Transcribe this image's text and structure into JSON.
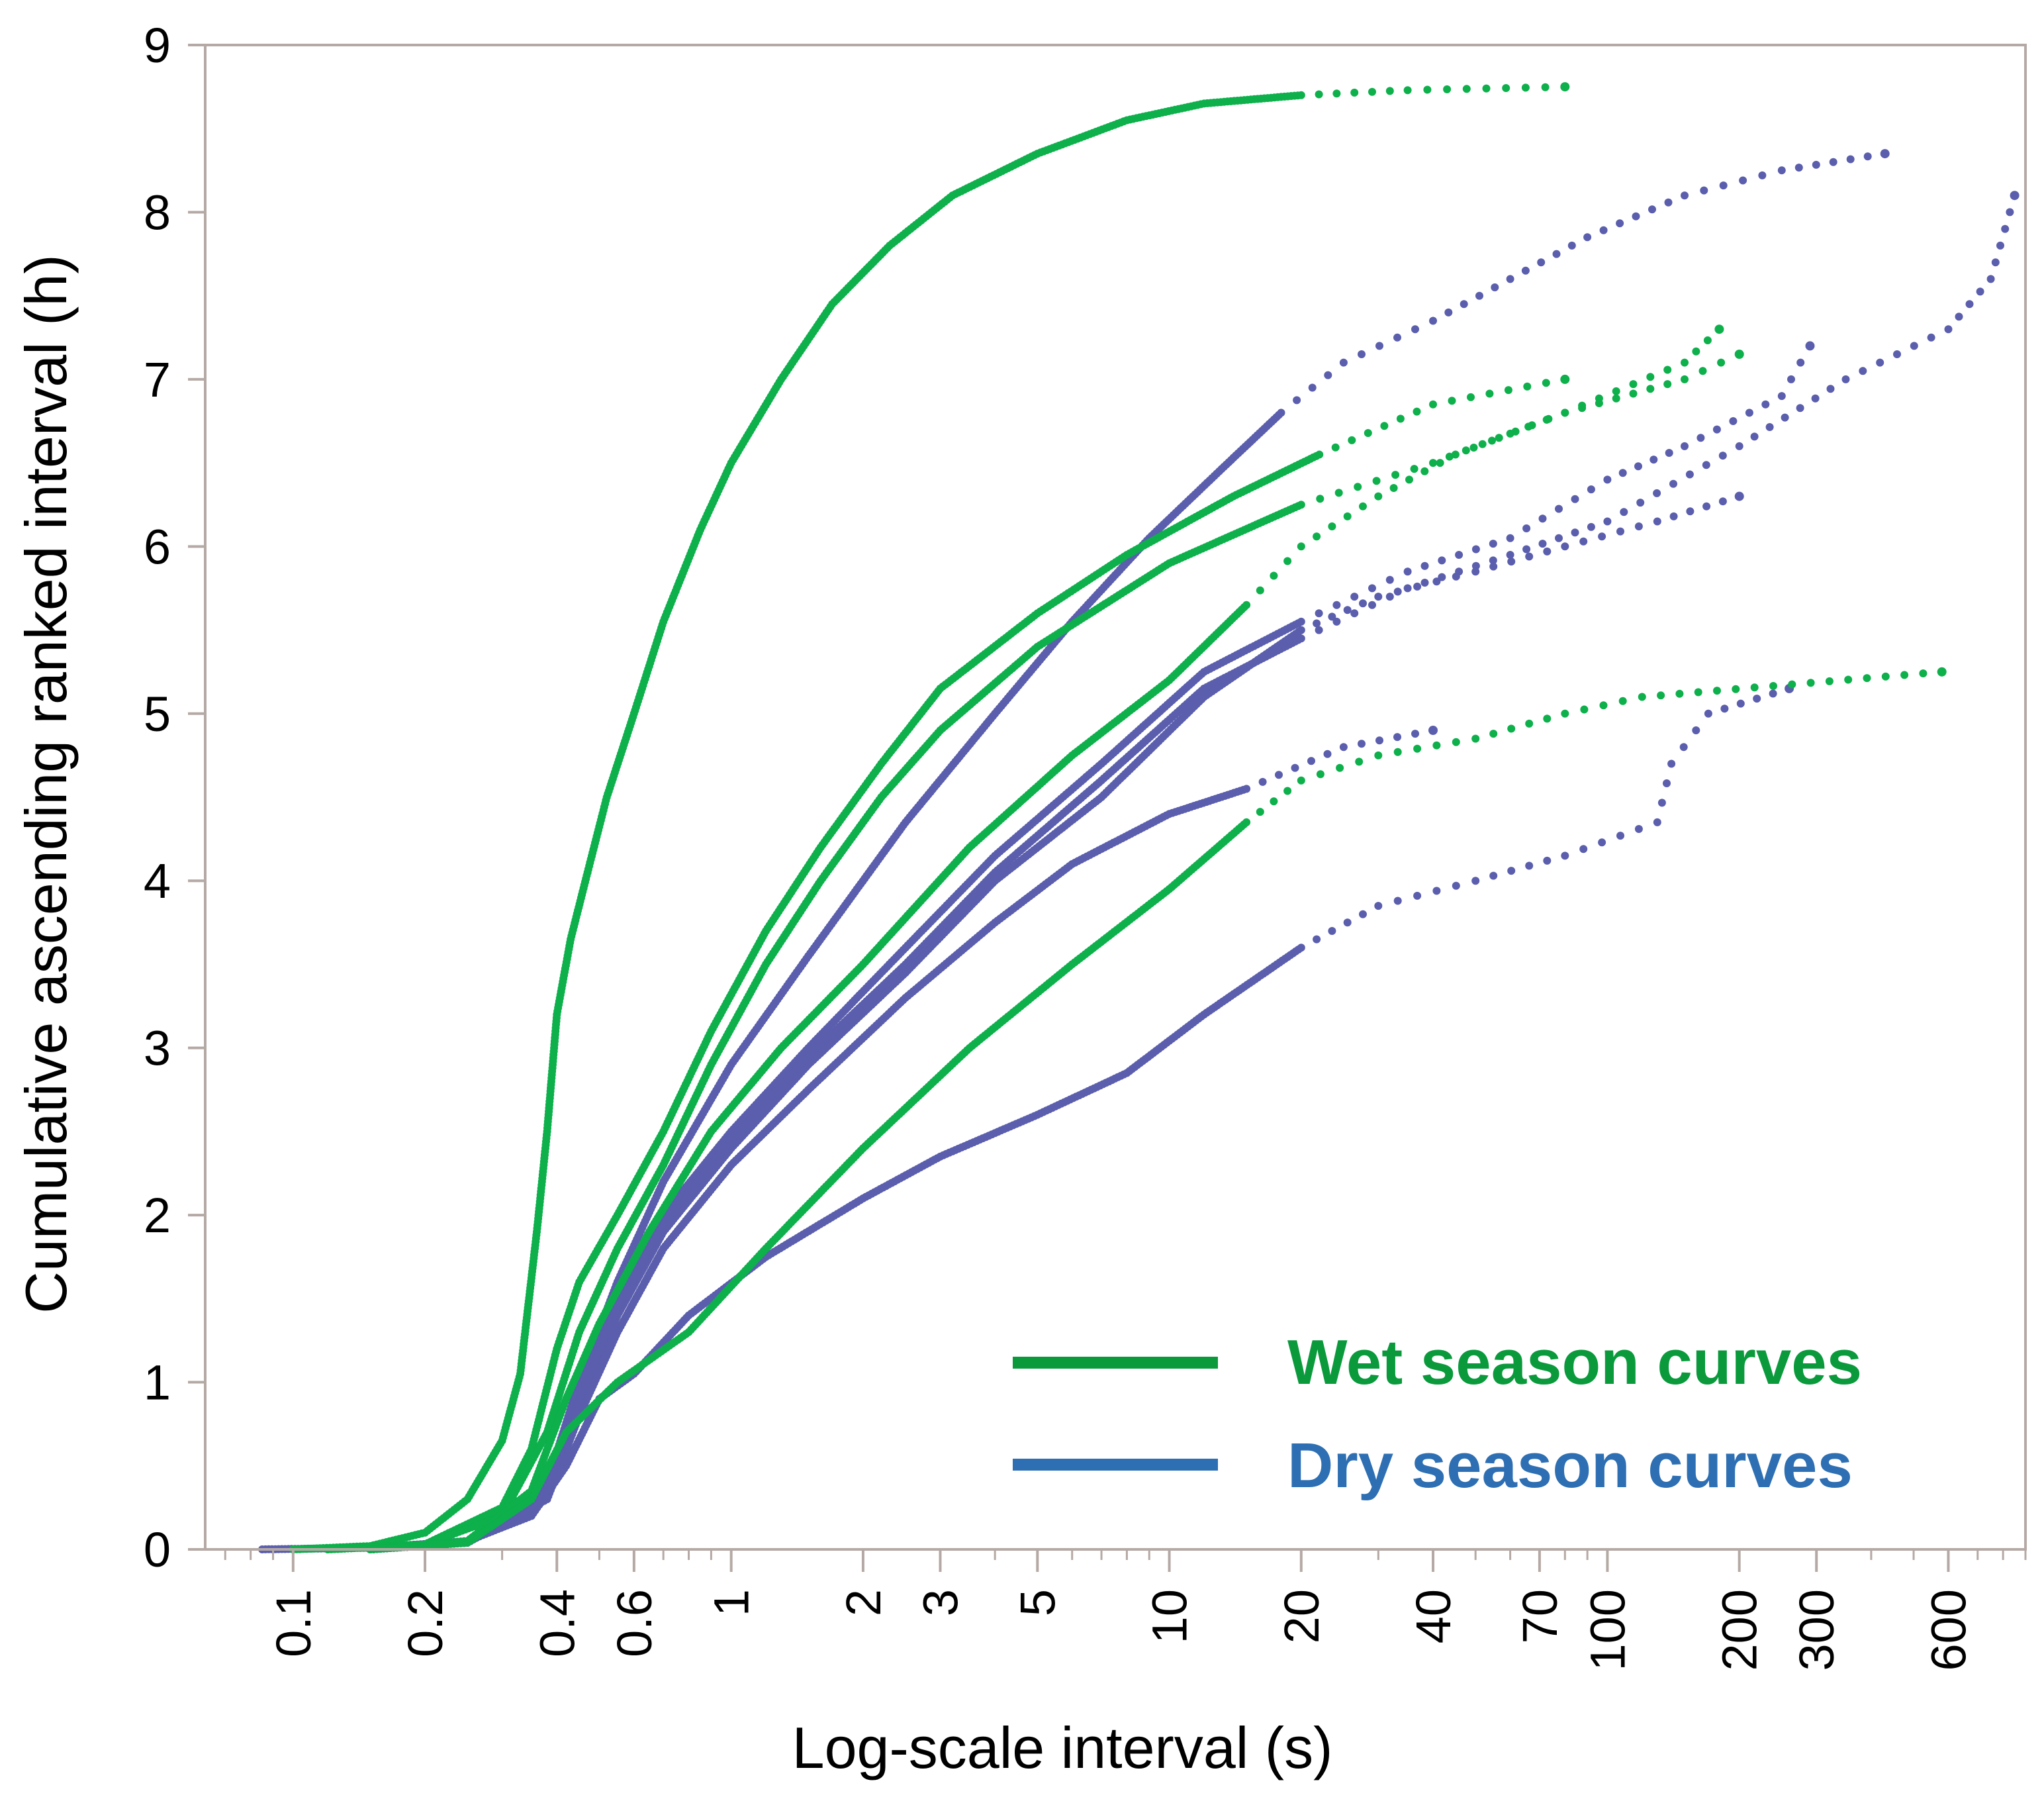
{
  "chart_data": {
    "type": "scatter",
    "title": "",
    "xlabel": "Log-scale interval (s)",
    "ylabel": "Cumulative ascending ranked interval (h)",
    "xscale": "log",
    "xlim": [
      0.063,
      900
    ],
    "ylim": [
      0,
      9
    ],
    "grid": false,
    "legend_position": "bottom-right",
    "x_ticks": [
      {
        "value": 0.1,
        "label": "0.1"
      },
      {
        "value": 0.2,
        "label": "0.2"
      },
      {
        "value": 0.4,
        "label": "0.4"
      },
      {
        "value": 0.6,
        "label": "0.6"
      },
      {
        "value": 1,
        "label": "1"
      },
      {
        "value": 2,
        "label": "2"
      },
      {
        "value": 3,
        "label": "3"
      },
      {
        "value": 5,
        "label": "5"
      },
      {
        "value": 10,
        "label": "10"
      },
      {
        "value": 20,
        "label": "20"
      },
      {
        "value": 40,
        "label": "40"
      },
      {
        "value": 70,
        "label": "70"
      },
      {
        "value": 100,
        "label": "100"
      },
      {
        "value": 200,
        "label": "200"
      },
      {
        "value": 300,
        "label": "300"
      },
      {
        "value": 600,
        "label": "600"
      }
    ],
    "y_ticks": [
      {
        "value": 0,
        "label": "0"
      },
      {
        "value": 1,
        "label": "1"
      },
      {
        "value": 2,
        "label": "2"
      },
      {
        "value": 3,
        "label": "3"
      },
      {
        "value": 4,
        "label": "4"
      },
      {
        "value": 5,
        "label": "5"
      },
      {
        "value": 6,
        "label": "6"
      },
      {
        "value": 7,
        "label": "7"
      },
      {
        "value": 8,
        "label": "8"
      },
      {
        "value": 9,
        "label": "9"
      }
    ],
    "legend": [
      {
        "label": "Wet season curves",
        "color": "#0a9a3c"
      },
      {
        "label": "Dry season curves",
        "color": "#2e6fb3"
      }
    ],
    "series": [
      {
        "name": "Wet season curve 1",
        "season": "wet",
        "color": "#0db04b",
        "points": [
          [
            0.1,
            0
          ],
          [
            0.15,
            0.02
          ],
          [
            0.2,
            0.1
          ],
          [
            0.25,
            0.3
          ],
          [
            0.3,
            0.65
          ],
          [
            0.33,
            1.05
          ],
          [
            0.36,
            1.9
          ],
          [
            0.38,
            2.5
          ],
          [
            0.4,
            3.2
          ],
          [
            0.43,
            3.65
          ],
          [
            0.47,
            4.05
          ],
          [
            0.52,
            4.5
          ],
          [
            0.6,
            5.0
          ],
          [
            0.7,
            5.55
          ],
          [
            0.85,
            6.1
          ],
          [
            1.0,
            6.5
          ],
          [
            1.3,
            7.0
          ],
          [
            1.7,
            7.45
          ],
          [
            2.3,
            7.8
          ],
          [
            3.2,
            8.1
          ],
          [
            5,
            8.35
          ],
          [
            8,
            8.55
          ],
          [
            12,
            8.65
          ],
          [
            20,
            8.7
          ],
          [
            35,
            8.73
          ],
          [
            80,
            8.75
          ]
        ]
      },
      {
        "name": "Wet season curve 2",
        "season": "wet",
        "color": "#0db04b",
        "points": [
          [
            0.12,
            0
          ],
          [
            0.2,
            0.03
          ],
          [
            0.3,
            0.25
          ],
          [
            0.35,
            0.6
          ],
          [
            0.4,
            1.2
          ],
          [
            0.45,
            1.6
          ],
          [
            0.55,
            2.0
          ],
          [
            0.7,
            2.5
          ],
          [
            0.9,
            3.1
          ],
          [
            1.2,
            3.7
          ],
          [
            1.6,
            4.2
          ],
          [
            2.2,
            4.7
          ],
          [
            3,
            5.15
          ],
          [
            5,
            5.6
          ],
          [
            8,
            5.95
          ],
          [
            14,
            6.3
          ],
          [
            22,
            6.55
          ],
          [
            40,
            6.85
          ],
          [
            80,
            7.0
          ]
        ]
      },
      {
        "name": "Wet season curve 3",
        "season": "wet",
        "color": "#0db04b",
        "points": [
          [
            0.12,
            0
          ],
          [
            0.2,
            0.03
          ],
          [
            0.3,
            0.2
          ],
          [
            0.38,
            0.7
          ],
          [
            0.45,
            1.3
          ],
          [
            0.55,
            1.8
          ],
          [
            0.7,
            2.3
          ],
          [
            0.9,
            2.9
          ],
          [
            1.2,
            3.5
          ],
          [
            1.6,
            4.0
          ],
          [
            2.2,
            4.5
          ],
          [
            3,
            4.9
          ],
          [
            5,
            5.4
          ],
          [
            10,
            5.9
          ],
          [
            20,
            6.25
          ],
          [
            40,
            6.5
          ],
          [
            80,
            6.8
          ],
          [
            150,
            7.1
          ],
          [
            180,
            7.3
          ]
        ]
      },
      {
        "name": "Wet season curve 4",
        "season": "wet",
        "color": "#0db04b",
        "points": [
          [
            0.15,
            0
          ],
          [
            0.25,
            0.05
          ],
          [
            0.35,
            0.35
          ],
          [
            0.42,
            0.9
          ],
          [
            0.5,
            1.35
          ],
          [
            0.65,
            1.9
          ],
          [
            0.9,
            2.5
          ],
          [
            1.3,
            3.0
          ],
          [
            2,
            3.5
          ],
          [
            3.5,
            4.2
          ],
          [
            6,
            4.75
          ],
          [
            10,
            5.2
          ],
          [
            15,
            5.65
          ],
          [
            20,
            6.0
          ],
          [
            30,
            6.3
          ],
          [
            45,
            6.55
          ],
          [
            80,
            6.8
          ],
          [
            150,
            7.0
          ],
          [
            200,
            7.15
          ]
        ]
      },
      {
        "name": "Wet season curve 5",
        "season": "wet",
        "color": "#0db04b",
        "points": [
          [
            0.15,
            0
          ],
          [
            0.25,
            0.04
          ],
          [
            0.35,
            0.3
          ],
          [
            0.42,
            0.7
          ],
          [
            0.55,
            1.0
          ],
          [
            0.8,
            1.3
          ],
          [
            1.2,
            1.8
          ],
          [
            2,
            2.4
          ],
          [
            3.5,
            3.0
          ],
          [
            6,
            3.5
          ],
          [
            10,
            3.95
          ],
          [
            15,
            4.35
          ],
          [
            20,
            4.6
          ],
          [
            30,
            4.75
          ],
          [
            50,
            4.85
          ],
          [
            80,
            5.0
          ],
          [
            120,
            5.1
          ],
          [
            580,
            5.25
          ]
        ]
      },
      {
        "name": "Dry season curve 1",
        "season": "dry",
        "color": "#5a5ead",
        "points": [
          [
            0.085,
            0
          ],
          [
            0.15,
            0.01
          ],
          [
            0.25,
            0.05
          ],
          [
            0.35,
            0.2
          ],
          [
            0.42,
            0.5
          ],
          [
            0.5,
            0.9
          ],
          [
            0.6,
            1.05
          ],
          [
            0.8,
            1.4
          ],
          [
            1.2,
            1.75
          ],
          [
            2,
            2.1
          ],
          [
            3,
            2.35
          ],
          [
            5,
            2.6
          ],
          [
            8,
            2.85
          ],
          [
            12,
            3.2
          ],
          [
            20,
            3.6
          ],
          [
            30,
            3.85
          ],
          [
            50,
            4.0
          ],
          [
            80,
            4.15
          ],
          [
            130,
            4.35
          ],
          [
            140,
            4.7
          ],
          [
            170,
            5.0
          ],
          [
            260,
            5.15
          ]
        ]
      },
      {
        "name": "Dry season curve 2",
        "season": "dry",
        "color": "#5a5ead",
        "points": [
          [
            0.15,
            0
          ],
          [
            0.25,
            0.04
          ],
          [
            0.38,
            0.3
          ],
          [
            0.45,
            0.8
          ],
          [
            0.55,
            1.3
          ],
          [
            0.7,
            1.8
          ],
          [
            1,
            2.3
          ],
          [
            1.5,
            2.75
          ],
          [
            2.5,
            3.3
          ],
          [
            4,
            3.75
          ],
          [
            6,
            4.1
          ],
          [
            10,
            4.4
          ],
          [
            15,
            4.55
          ],
          [
            25,
            4.8
          ],
          [
            40,
            4.9
          ]
        ]
      },
      {
        "name": "Dry season curve 3",
        "season": "dry",
        "color": "#5a5ead",
        "points": [
          [
            0.15,
            0
          ],
          [
            0.25,
            0.04
          ],
          [
            0.38,
            0.35
          ],
          [
            0.45,
            0.9
          ],
          [
            0.55,
            1.4
          ],
          [
            0.7,
            1.9
          ],
          [
            1,
            2.4
          ],
          [
            1.5,
            2.9
          ],
          [
            2.5,
            3.45
          ],
          [
            4,
            4.0
          ],
          [
            7,
            4.5
          ],
          [
            12,
            5.1
          ],
          [
            20,
            5.5
          ],
          [
            30,
            5.7
          ],
          [
            50,
            5.85
          ],
          [
            80,
            6.0
          ],
          [
            130,
            6.15
          ],
          [
            200,
            6.3
          ]
        ]
      },
      {
        "name": "Dry season curve 4",
        "season": "dry",
        "color": "#5a5ead",
        "points": [
          [
            0.15,
            0
          ],
          [
            0.25,
            0.04
          ],
          [
            0.38,
            0.35
          ],
          [
            0.45,
            0.95
          ],
          [
            0.55,
            1.5
          ],
          [
            0.7,
            2.0
          ],
          [
            1,
            2.5
          ],
          [
            1.5,
            3.0
          ],
          [
            2.5,
            3.6
          ],
          [
            4,
            4.15
          ],
          [
            7,
            4.7
          ],
          [
            12,
            5.25
          ],
          [
            20,
            5.55
          ],
          [
            35,
            5.85
          ],
          [
            60,
            6.05
          ],
          [
            100,
            6.4
          ],
          [
            150,
            6.6
          ],
          [
            250,
            6.9
          ],
          [
            290,
            7.2
          ]
        ]
      },
      {
        "name": "Dry season curve 5",
        "season": "dry",
        "color": "#5a5ead",
        "points": [
          [
            0.15,
            0
          ],
          [
            0.25,
            0.05
          ],
          [
            0.38,
            0.4
          ],
          [
            0.45,
            1.0
          ],
          [
            0.55,
            1.6
          ],
          [
            0.7,
            2.2
          ],
          [
            1,
            2.9
          ],
          [
            1.5,
            3.55
          ],
          [
            2.5,
            4.35
          ],
          [
            4,
            5.0
          ],
          [
            6,
            5.55
          ],
          [
            9,
            6.05
          ],
          [
            13,
            6.45
          ],
          [
            18,
            6.8
          ],
          [
            25,
            7.1
          ],
          [
            40,
            7.35
          ],
          [
            60,
            7.6
          ],
          [
            90,
            7.85
          ],
          [
            150,
            8.1
          ],
          [
            250,
            8.25
          ],
          [
            430,
            8.35
          ]
        ]
      },
      {
        "name": "Dry season curve 6",
        "season": "dry",
        "color": "#5a5ead",
        "points": [
          [
            0.15,
            0
          ],
          [
            0.25,
            0.04
          ],
          [
            0.38,
            0.35
          ],
          [
            0.45,
            0.9
          ],
          [
            0.55,
            1.45
          ],
          [
            0.7,
            1.95
          ],
          [
            1,
            2.45
          ],
          [
            1.5,
            2.95
          ],
          [
            2.5,
            3.5
          ],
          [
            4,
            4.05
          ],
          [
            7,
            4.6
          ],
          [
            12,
            5.15
          ],
          [
            20,
            5.45
          ],
          [
            35,
            5.75
          ],
          [
            60,
            5.95
          ],
          [
            100,
            6.15
          ],
          [
            200,
            6.6
          ],
          [
            350,
            7.0
          ],
          [
            600,
            7.3
          ],
          [
            750,
            7.6
          ],
          [
            850,
            8.1
          ]
        ]
      }
    ]
  }
}
